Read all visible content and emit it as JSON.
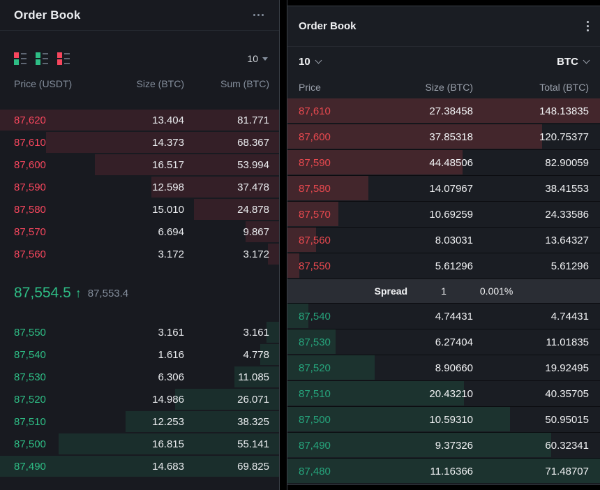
{
  "colors": {
    "left_red": "#F6465D",
    "left_green": "#2EBD85",
    "right_red": "#E9494F",
    "right_green": "#26A57C"
  },
  "left_panel": {
    "title": "Order Book",
    "precision": "10",
    "columns": [
      "Price (USDT)",
      "Size (BTC)",
      "Sum (BTC)"
    ],
    "asks": [
      {
        "price": "87,620",
        "size": "13.404",
        "sum": "81.771"
      },
      {
        "price": "87,610",
        "size": "14.373",
        "sum": "68.367"
      },
      {
        "price": "87,600",
        "size": "16.517",
        "sum": "53.994"
      },
      {
        "price": "87,590",
        "size": "12.598",
        "sum": "37.478"
      },
      {
        "price": "87,580",
        "size": "15.010",
        "sum": "24.878"
      },
      {
        "price": "87,570",
        "size": "6.694",
        "sum": "9.867"
      },
      {
        "price": "87,560",
        "size": "3.172",
        "sum": "3.172"
      }
    ],
    "last_price": "87,554.5",
    "direction_arrow": "↑",
    "mark_price": "87,553.4",
    "bids": [
      {
        "price": "87,550",
        "size": "3.161",
        "sum": "3.161"
      },
      {
        "price": "87,540",
        "size": "1.616",
        "sum": "4.778"
      },
      {
        "price": "87,530",
        "size": "6.306",
        "sum": "11.085"
      },
      {
        "price": "87,520",
        "size": "14.986",
        "sum": "26.071"
      },
      {
        "price": "87,510",
        "size": "12.253",
        "sum": "38.325"
      },
      {
        "price": "87,500",
        "size": "16.815",
        "sum": "55.141"
      },
      {
        "price": "87,490",
        "size": "14.683",
        "sum": "69.825"
      }
    ]
  },
  "right_panel": {
    "title": "Order Book",
    "depth": "10",
    "unit": "BTC",
    "columns": [
      "Price",
      "Size (BTC)",
      "Total (BTC)"
    ],
    "asks": [
      {
        "price": "87,610",
        "size": "27.38458",
        "sum": "148.13835"
      },
      {
        "price": "87,600",
        "size": "37.85318",
        "sum": "120.75377"
      },
      {
        "price": "87,590",
        "size": "44.48506",
        "sum": "82.90059"
      },
      {
        "price": "87,580",
        "size": "14.07967",
        "sum": "38.41553"
      },
      {
        "price": "87,570",
        "size": "10.69259",
        "sum": "24.33586"
      },
      {
        "price": "87,560",
        "size": "8.03031",
        "sum": "13.64327"
      },
      {
        "price": "87,550",
        "size": "5.61296",
        "sum": "5.61296"
      }
    ],
    "spread": {
      "label": "Spread",
      "value": "1",
      "percent": "0.001%"
    },
    "bids": [
      {
        "price": "87,540",
        "size": "4.74431",
        "sum": "4.74431"
      },
      {
        "price": "87,530",
        "size": "6.27404",
        "sum": "11.01835"
      },
      {
        "price": "87,520",
        "size": "8.90660",
        "sum": "19.92495"
      },
      {
        "price": "87,510",
        "size": "20.43210",
        "sum": "40.35705"
      },
      {
        "price": "87,500",
        "size": "10.59310",
        "sum": "50.95015"
      },
      {
        "price": "87,490",
        "size": "9.37326",
        "sum": "60.32341"
      },
      {
        "price": "87,480",
        "size": "11.16366",
        "sum": "71.48707"
      }
    ]
  }
}
